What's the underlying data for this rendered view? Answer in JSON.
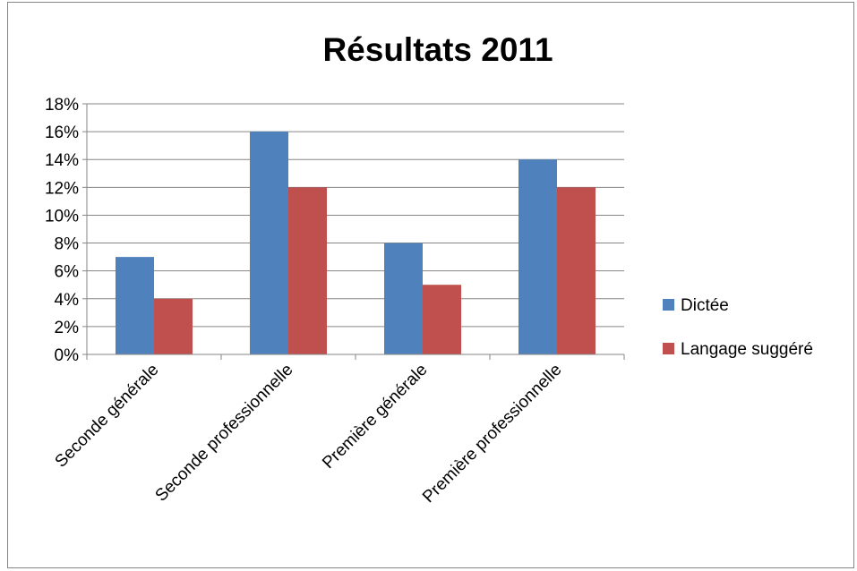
{
  "chart_data": {
    "type": "bar",
    "title": "Résultats 2011",
    "categories": [
      "Seconde générale",
      "Seconde professionnelle",
      "Première générale",
      "Première professionnelle"
    ],
    "series": [
      {
        "name": "Dictée",
        "values": [
          7,
          16,
          8,
          14
        ],
        "color": "#4f81bd"
      },
      {
        "name": "Langage suggéré",
        "values": [
          4,
          12,
          5,
          12
        ],
        "color": "#c0504d"
      }
    ],
    "ylim": [
      0,
      18
    ],
    "y_ticks": [
      "0%",
      "2%",
      "4%",
      "6%",
      "8%",
      "10%",
      "12%",
      "14%",
      "16%",
      "18%"
    ],
    "xlabel": "",
    "ylabel": "",
    "grid": true,
    "legend_position": "right"
  }
}
